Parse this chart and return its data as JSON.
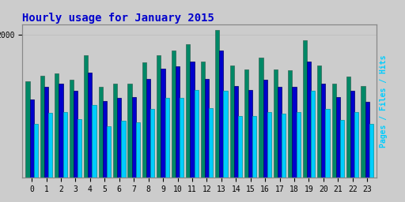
{
  "title": "Hourly usage for January 2015",
  "hours": [
    0,
    1,
    2,
    3,
    4,
    5,
    6,
    7,
    8,
    9,
    10,
    11,
    12,
    13,
    14,
    15,
    16,
    17,
    18,
    19,
    20,
    21,
    22,
    23
  ],
  "pages": [
    1350,
    1430,
    1460,
    1370,
    1720,
    1270,
    1320,
    1320,
    1620,
    1720,
    1780,
    1870,
    1630,
    2070,
    1570,
    1520,
    1680,
    1520,
    1510,
    1930,
    1570,
    1320,
    1420,
    1280
  ],
  "files": [
    1100,
    1270,
    1320,
    1220,
    1470,
    1070,
    1120,
    1130,
    1380,
    1530,
    1560,
    1630,
    1380,
    1780,
    1280,
    1230,
    1370,
    1270,
    1270,
    1630,
    1320,
    1130,
    1220,
    1060
  ],
  "hits": [
    760,
    910,
    920,
    820,
    1020,
    720,
    800,
    780,
    970,
    1120,
    1120,
    1230,
    980,
    1220,
    870,
    870,
    920,
    900,
    920,
    1220,
    970,
    810,
    920,
    760
  ],
  "color_pages": "#008866",
  "color_files": "#0000cc",
  "color_hits": "#00ccff",
  "bg_color": "#cccccc",
  "title_color": "#0000cc",
  "bar_width": 0.28,
  "ylim_max": 2150,
  "ytick_val": 2000,
  "title_fontsize": 10,
  "tick_fontsize": 7,
  "right_label": "Pages / Files / Hits",
  "right_label_color": "#00ccff",
  "grid_color": "#bbbbbb",
  "edge_color": "#336655"
}
